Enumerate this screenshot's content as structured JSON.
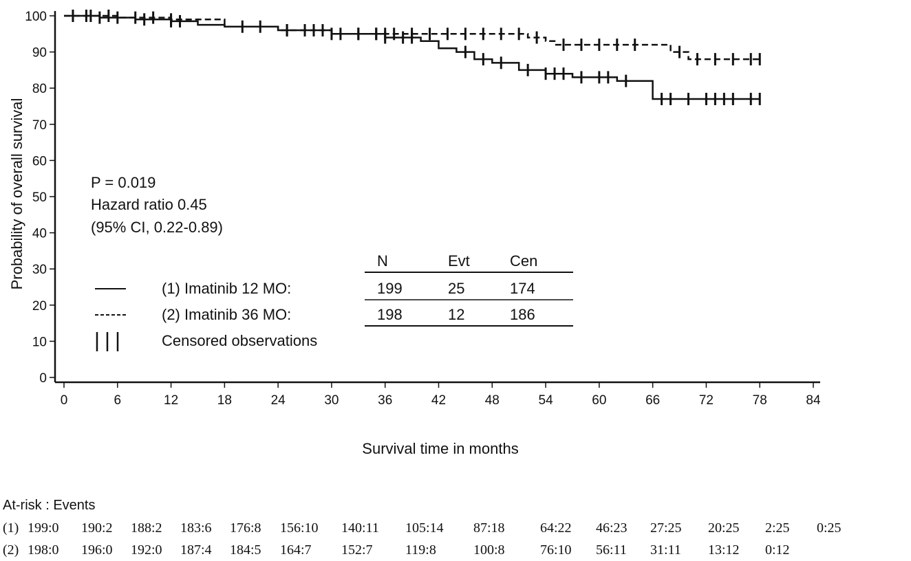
{
  "chart_data": {
    "type": "line",
    "subtype": "kaplan-meier",
    "xlabel": "Survival time in months",
    "ylabel": "Probability of overall survival",
    "xlim": [
      0,
      84
    ],
    "ylim": [
      0,
      100
    ],
    "xticks": [
      0,
      6,
      12,
      18,
      24,
      30,
      36,
      42,
      48,
      54,
      60,
      66,
      72,
      78,
      84
    ],
    "yticks": [
      0,
      10,
      20,
      30,
      40,
      50,
      60,
      70,
      80,
      90,
      100
    ],
    "grid": false,
    "annotations": [
      "P = 0.019",
      "Hazard ratio 0.45",
      "(95% CI, 0.22-0.89)"
    ],
    "legend": {
      "placement": "bottom-left",
      "items": [
        {
          "symbol": "solid",
          "label": "(1) Imatinib 12 MO:"
        },
        {
          "symbol": "dashed",
          "label": "(2) Imatinib 36 MO:"
        },
        {
          "symbol": "censor",
          "label": "Censored observations"
        }
      ],
      "table": {
        "headers": [
          "N",
          "Evt",
          "Cen"
        ],
        "rows": [
          [
            "199",
            "25",
            "174"
          ],
          [
            "198",
            "12",
            "186"
          ]
        ]
      }
    },
    "series": [
      {
        "style": "solid",
        "x": [
          0,
          4,
          8,
          12,
          15,
          18,
          24,
          30,
          36,
          40,
          42,
          44,
          46,
          48,
          51,
          54,
          57,
          62,
          65,
          66,
          78
        ],
        "y": [
          100,
          99.5,
          99,
          98.5,
          97.5,
          97,
          96,
          95,
          94,
          93,
          91,
          90,
          88,
          87,
          85,
          84,
          83,
          82,
          82,
          77,
          77
        ],
        "censored_x": [
          1,
          2.5,
          4,
          6,
          9,
          12,
          13,
          20,
          25,
          28,
          30,
          33,
          35,
          36,
          38,
          39,
          45,
          47,
          49,
          52,
          54,
          55,
          56,
          58,
          60,
          61,
          63,
          67,
          68,
          70,
          72,
          73,
          74,
          75,
          77,
          78
        ]
      },
      {
        "style": "dashed",
        "x": [
          0,
          6,
          12,
          18,
          24,
          30,
          36,
          42,
          46,
          52,
          54,
          55,
          57,
          65,
          68,
          70,
          78
        ],
        "y": [
          100,
          99.5,
          99,
          97,
          96,
          95,
          95,
          95,
          95,
          94,
          93,
          92,
          92,
          92,
          90,
          88,
          88
        ],
        "censored_x": [
          1,
          3,
          5,
          8,
          10,
          12,
          22,
          25,
          27,
          29,
          31,
          33,
          35,
          36,
          37,
          39,
          41,
          43,
          45,
          47,
          49,
          51,
          53,
          56,
          58,
          60,
          62,
          64,
          69,
          71,
          73,
          75,
          77,
          78
        ]
      }
    ]
  },
  "at_risk": {
    "title": "At-risk : Events",
    "rows": [
      {
        "label": "(1)",
        "values": [
          "199:0",
          "190:2",
          "188:2",
          "183:6",
          "176:8",
          "156:10",
          "140:11",
          "105:14",
          "87:18",
          "64:22",
          "46:23",
          "27:25",
          "20:25",
          "2:25",
          "0:25"
        ]
      },
      {
        "label": "(2)",
        "values": [
          "198:0",
          "196:0",
          "192:0",
          "187:4",
          "184:5",
          "164:7",
          "152:7",
          "119:8",
          "100:8",
          "76:10",
          "56:11",
          "31:11",
          "13:12",
          "0:12"
        ]
      }
    ]
  }
}
